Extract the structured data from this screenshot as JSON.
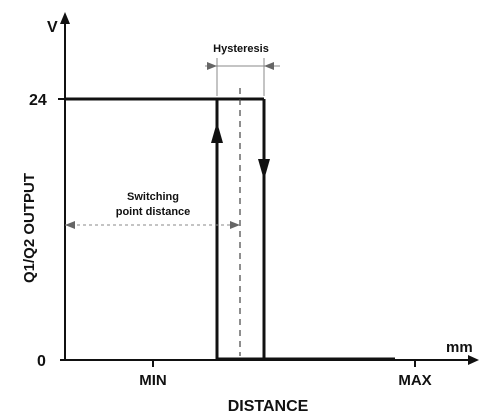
{
  "diagram": {
    "y_axis_unit": "V",
    "x_axis_unit": "mm",
    "y_axis_title": "Q1/Q2 OUTPUT",
    "x_axis_title": "DISTANCE",
    "y_tick_high": "24",
    "y_tick_low": "0",
    "x_tick_min": "MIN",
    "x_tick_max": "MAX",
    "hysteresis_label": "Hysteresis",
    "switching_label_line1": "Switching",
    "switching_label_line2": "point distance"
  }
}
